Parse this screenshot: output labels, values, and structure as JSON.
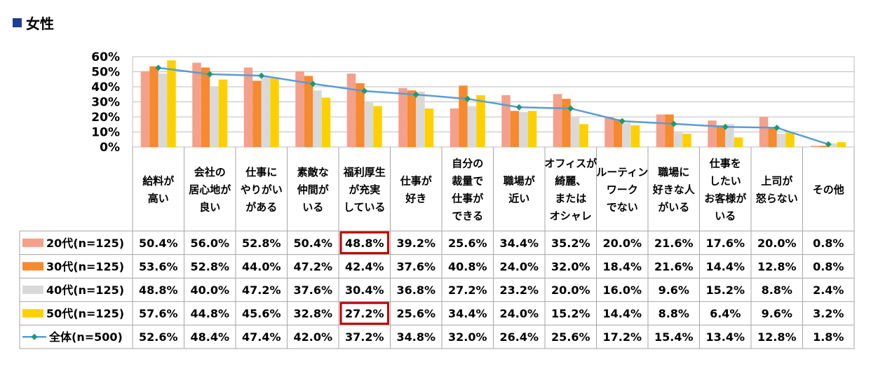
{
  "title": "女性",
  "chart_data": {
    "type": "bar",
    "categories": [
      [
        "給料が",
        "高い"
      ],
      [
        "会社の",
        "居心地が",
        "良い"
      ],
      [
        "仕事に",
        "やりがい",
        "がある"
      ],
      [
        "素敵な",
        "仲間が",
        "いる"
      ],
      [
        "福利厚生",
        "が充実",
        "している"
      ],
      [
        "仕事が",
        "好き"
      ],
      [
        "自分の",
        "裁量で",
        "仕事が",
        "できる"
      ],
      [
        "職場が",
        "近い"
      ],
      [
        "オフィスが",
        "綺麗、",
        "または",
        "オシャレ"
      ],
      [
        "ルーティン",
        "ワーク",
        "でない"
      ],
      [
        "職場に",
        "好きな人",
        "がいる"
      ],
      [
        "仕事を",
        "したい",
        "お客様が",
        "いる"
      ],
      [
        "上司が",
        "怒らない"
      ],
      [
        "その他"
      ]
    ],
    "series": [
      {
        "name": "20代(n=125)",
        "type": "bar",
        "color": "#f4a08a",
        "values": [
          50.4,
          56.0,
          52.8,
          50.4,
          48.8,
          39.2,
          25.6,
          34.4,
          35.2,
          20.0,
          21.6,
          17.6,
          20.0,
          0.8
        ],
        "labels": [
          "50.4%",
          "56.0%",
          "52.8%",
          "50.4%",
          "48.8%",
          "39.2%",
          "25.6%",
          "34.4%",
          "35.2%",
          "20.0%",
          "21.6%",
          "17.6%",
          "20.0%",
          "0.8%"
        ]
      },
      {
        "name": "30代(n=125)",
        "type": "bar",
        "color": "#f58a2e",
        "values": [
          53.6,
          52.8,
          44.0,
          47.2,
          42.4,
          37.6,
          40.8,
          24.0,
          32.0,
          18.4,
          21.6,
          14.4,
          12.8,
          0.8
        ],
        "labels": [
          "53.6%",
          "52.8%",
          "44.0%",
          "47.2%",
          "42.4%",
          "37.6%",
          "40.8%",
          "24.0%",
          "32.0%",
          "18.4%",
          "21.6%",
          "14.4%",
          "12.8%",
          "0.8%"
        ]
      },
      {
        "name": "40代(n=125)",
        "type": "bar",
        "color": "#d9d9d9",
        "values": [
          48.8,
          40.0,
          47.2,
          37.6,
          30.4,
          36.8,
          27.2,
          23.2,
          20.0,
          16.0,
          9.6,
          15.2,
          8.8,
          2.4
        ],
        "labels": [
          "48.8%",
          "40.0%",
          "47.2%",
          "37.6%",
          "30.4%",
          "36.8%",
          "27.2%",
          "23.2%",
          "20.0%",
          "16.0%",
          "9.6%",
          "15.2%",
          "8.8%",
          "2.4%"
        ]
      },
      {
        "name": "50代(n=125)",
        "type": "bar",
        "color": "#ffd000",
        "values": [
          57.6,
          44.8,
          45.6,
          32.8,
          27.2,
          25.6,
          34.4,
          24.0,
          15.2,
          14.4,
          8.8,
          6.4,
          9.6,
          3.2
        ],
        "labels": [
          "57.6%",
          "44.8%",
          "45.6%",
          "32.8%",
          "27.2%",
          "25.6%",
          "34.4%",
          "24.0%",
          "15.2%",
          "14.4%",
          "8.8%",
          "6.4%",
          "9.6%",
          "3.2%"
        ]
      },
      {
        "name": "全体(n=500)",
        "type": "line",
        "color": "#5b9bd5",
        "marker_color": "#1b9a74",
        "values": [
          52.6,
          48.4,
          47.4,
          42.0,
          37.2,
          34.8,
          32.0,
          26.4,
          25.6,
          17.2,
          15.4,
          13.4,
          12.8,
          1.8
        ],
        "labels": [
          "52.6%",
          "48.4%",
          "47.4%",
          "42.0%",
          "37.2%",
          "34.8%",
          "32.0%",
          "26.4%",
          "25.6%",
          "17.2%",
          "15.4%",
          "13.4%",
          "12.8%",
          "1.8%"
        ]
      }
    ],
    "yticks": [
      "0%",
      "10%",
      "20%",
      "30%",
      "40%",
      "50%",
      "60%"
    ],
    "ylim": [
      0,
      60
    ],
    "grid": true,
    "legend": "data-table",
    "highlight_cells": [
      {
        "series": 0,
        "category": 4,
        "color": "#c00000"
      },
      {
        "series": 3,
        "category": 4,
        "color": "#c00000"
      }
    ]
  }
}
